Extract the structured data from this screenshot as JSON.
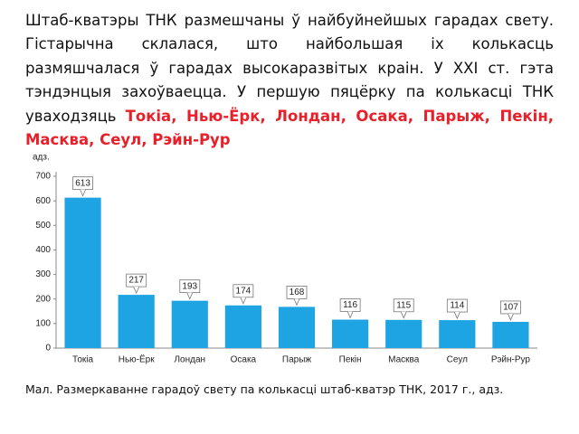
{
  "paragraph": {
    "text": "Штаб-кватэры ТНК размешчаны ў найбуйнейшых гарадах свету. Гістарычна склалася, што найбольшая іх колькасць размяшчалася ў гарадах высокаразвітых краін. У XXI ст. гэта тэндэнцыя захоўваецца. У першую пяцёрку па колькасці ТНК уваходзяць ",
    "highlight": "Токіа, Нью-Ёрк, Лондан, Осака, Парыж, Пекін, Масква, Сеул, Рэйн-Рур"
  },
  "chart_data": {
    "type": "bar",
    "y_label": "адз.",
    "categories": [
      "Токіа",
      "Нью-Ёрк",
      "Лондан",
      "Осака",
      "Парыж",
      "Пекін",
      "Масква",
      "Сеул",
      "Рэйн-Рур"
    ],
    "values": [
      613,
      217,
      193,
      174,
      168,
      116,
      115,
      114,
      107
    ],
    "color": "#1ea4e2",
    "ylim": [
      0,
      700
    ],
    "yticks": [
      0,
      100,
      200,
      300,
      400,
      500,
      600,
      700
    ]
  },
  "caption": "Мал. Размеркаванне гарадоў свету па колькасці штаб-кватэр ТНК, 2017 г., адз."
}
